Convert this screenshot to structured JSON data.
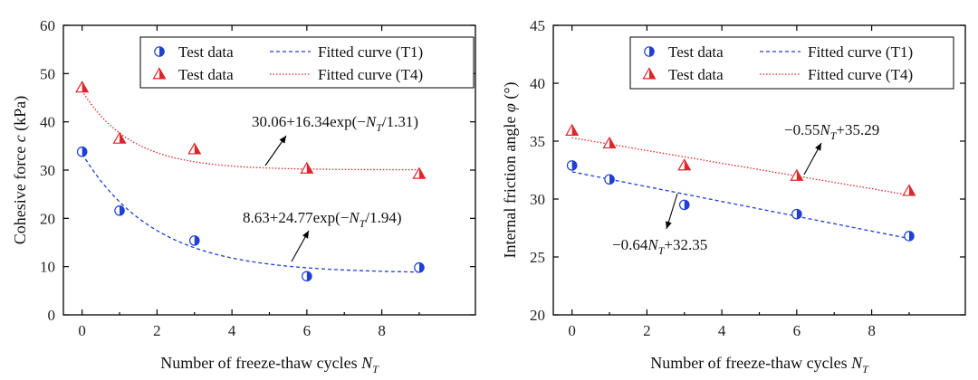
{
  "chart_data": [
    {
      "type": "scatter",
      "title": "",
      "xlabel": "Number of freeze-thaw cycles N_T",
      "xlabel_parts": [
        "Number of freeze-thaw cycles ",
        "N",
        "T"
      ],
      "ylabel": "Cohesive force c (kPa)",
      "ylabel_parts": [
        "Cohesive force ",
        "c",
        " (kPa)"
      ],
      "xlim": [
        -0.5,
        10.5
      ],
      "ylim": [
        0,
        60
      ],
      "xticks": [
        0,
        2,
        4,
        6,
        8
      ],
      "yticks": [
        0,
        10,
        20,
        30,
        40,
        50,
        60
      ],
      "legend_position": "top-right",
      "series": [
        {
          "name": "Test data",
          "marker": "half-circle",
          "color": "#1f3fd6",
          "x": [
            0,
            1,
            3,
            6,
            9
          ],
          "y": [
            33.8,
            21.6,
            15.4,
            8.0,
            9.8
          ]
        },
        {
          "name": "Test data",
          "marker": "half-triangle",
          "color": "#e0242a",
          "x": [
            0,
            1,
            3,
            6,
            9
          ],
          "y": [
            47.1,
            36.5,
            34.3,
            30.3,
            29.2
          ]
        },
        {
          "name": "Fitted curve (T1)",
          "line": "dashed",
          "color": "#1f3fd6",
          "model": "exp",
          "params": {
            "a": 8.63,
            "b": 24.77,
            "t": 1.94
          }
        },
        {
          "name": "Fitted curve (T4)",
          "line": "dotted",
          "color": "#e0242a",
          "model": "exp",
          "params": {
            "a": 30.06,
            "b": 16.34,
            "t": 1.31
          }
        }
      ],
      "annotations": [
        {
          "series": "T4",
          "text_pre": "30.06+16.34exp(−",
          "text_sub": "N",
          "text_subscript": "T",
          "text_post": "/1.31)"
        },
        {
          "series": "T1",
          "text_pre": "8.63+24.77exp(−",
          "text_sub": "N",
          "text_subscript": "T",
          "text_post": "/1.94)"
        }
      ]
    },
    {
      "type": "scatter",
      "title": "",
      "xlabel": "Number of freeze-thaw cycles N_T",
      "xlabel_parts": [
        "Number of freeze-thaw cycles  ",
        "N",
        "T"
      ],
      "ylabel": "Internal friction angle φ (°)",
      "ylabel_parts": [
        "Internal friction angle ",
        "φ",
        " (°)"
      ],
      "xlim": [
        -0.5,
        10.5
      ],
      "ylim": [
        20,
        45
      ],
      "xticks": [
        0,
        2,
        4,
        6,
        8
      ],
      "yticks": [
        20,
        25,
        30,
        35,
        40,
        45
      ],
      "legend_position": "top-right",
      "series": [
        {
          "name": "Test data",
          "marker": "half-circle",
          "color": "#1f3fd6",
          "x": [
            0,
            1,
            3,
            6,
            9
          ],
          "y": [
            32.9,
            31.7,
            29.5,
            28.7,
            26.8
          ]
        },
        {
          "name": "Test data",
          "marker": "half-triangle",
          "color": "#e0242a",
          "x": [
            0,
            1,
            3,
            6,
            9
          ],
          "y": [
            35.9,
            34.8,
            32.9,
            32.0,
            30.7
          ]
        },
        {
          "name": "Fitted curve (T1)",
          "line": "dashed",
          "color": "#1f3fd6",
          "model": "linear",
          "params": {
            "m": -0.64,
            "c": 32.35
          }
        },
        {
          "name": "Fitted curve (T4)",
          "line": "dotted",
          "color": "#e0242a",
          "model": "linear",
          "params": {
            "m": -0.55,
            "c": 35.29
          }
        }
      ],
      "annotations": [
        {
          "series": "T4",
          "text_pre": "−0.55",
          "text_sub": "N",
          "text_subscript": "T",
          "text_post": "+35.29"
        },
        {
          "series": "T1",
          "text_pre": "−0.64",
          "text_sub": "N",
          "text_subscript": "T",
          "text_post": "+32.35"
        }
      ]
    }
  ]
}
